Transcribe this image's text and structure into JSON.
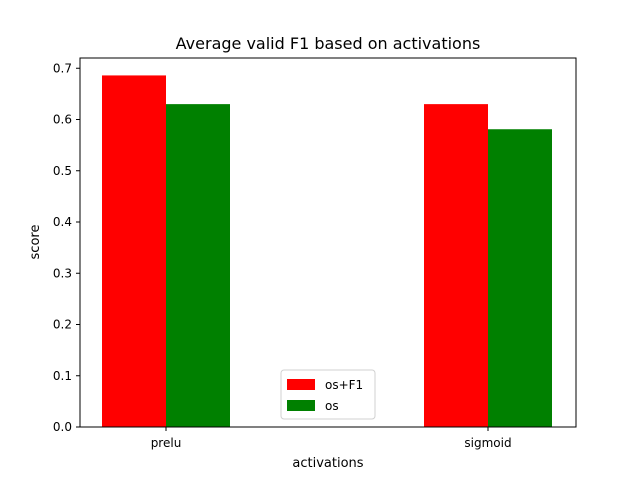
{
  "chart_data": {
    "type": "bar",
    "title": "Average valid F1 based on activations",
    "xlabel": "activations",
    "ylabel": "score",
    "categories": [
      "prelu",
      "sigmoid"
    ],
    "series": [
      {
        "name": "os+F1",
        "values": [
          0.686,
          0.63
        ],
        "color": "#ff0000"
      },
      {
        "name": "os",
        "values": [
          0.63,
          0.581
        ],
        "color": "#008000"
      }
    ],
    "ylim": [
      0,
      0.7
    ],
    "yticks": [
      "0.0",
      "0.1",
      "0.2",
      "0.3",
      "0.4",
      "0.5",
      "0.6",
      "0.7"
    ],
    "grid": false,
    "legend_position": "bottom-center"
  }
}
